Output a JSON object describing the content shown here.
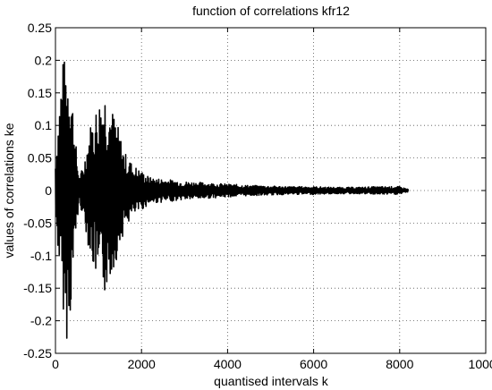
{
  "chart_data": {
    "type": "line",
    "title": "function of correlations kfr12",
    "xlabel": "quantised intervals k",
    "ylabel": "values of correlations ke",
    "xlim": [
      0,
      10000
    ],
    "ylim": [
      -0.25,
      0.25
    ],
    "xticks": [
      0,
      2000,
      4000,
      6000,
      8000,
      10000
    ],
    "xtick_labels": [
      "0",
      "2000",
      "4000",
      "6000",
      "8000",
      "10000"
    ],
    "yticks": [
      0.25,
      0.2,
      0.15,
      0.1,
      0.05,
      0,
      -0.05,
      -0.1,
      -0.15,
      -0.2,
      -0.25
    ],
    "ytick_labels": [
      "0.25",
      "0.2",
      "0.15",
      "0.1",
      "0.05",
      "0",
      "-0.05",
      "-0.1",
      "-0.15",
      "-0.2",
      "-0.25"
    ],
    "grid": true,
    "line_color": "#000000",
    "series": [
      {
        "name": "",
        "x": [
          0,
          150,
          250,
          350,
          450,
          550,
          650,
          800,
          1000,
          1150,
          1300,
          1450,
          1600,
          1800,
          2000,
          2200,
          2500,
          3000,
          3500,
          4000,
          4500,
          5000,
          5500,
          6000,
          6500,
          7000,
          7500,
          8000,
          8200
        ],
        "envelope_upper": [
          0.05,
          0.2,
          0.205,
          0.19,
          0.09,
          0.02,
          0.04,
          0.1,
          0.14,
          0.16,
          0.13,
          0.1,
          0.06,
          0.04,
          0.03,
          0.02,
          0.018,
          0.014,
          0.012,
          0.01,
          0.008,
          0.007,
          0.006,
          0.006,
          0.005,
          0.005,
          0.006,
          0.006,
          0.002
        ],
        "envelope_lower": [
          -0.05,
          -0.16,
          -0.235,
          -0.19,
          -0.09,
          -0.02,
          -0.04,
          -0.1,
          -0.15,
          -0.16,
          -0.13,
          -0.1,
          -0.06,
          -0.04,
          -0.03,
          -0.02,
          -0.018,
          -0.014,
          -0.012,
          -0.01,
          -0.008,
          -0.007,
          -0.006,
          -0.006,
          -0.005,
          -0.005,
          -0.006,
          -0.006,
          -0.002
        ]
      }
    ]
  }
}
